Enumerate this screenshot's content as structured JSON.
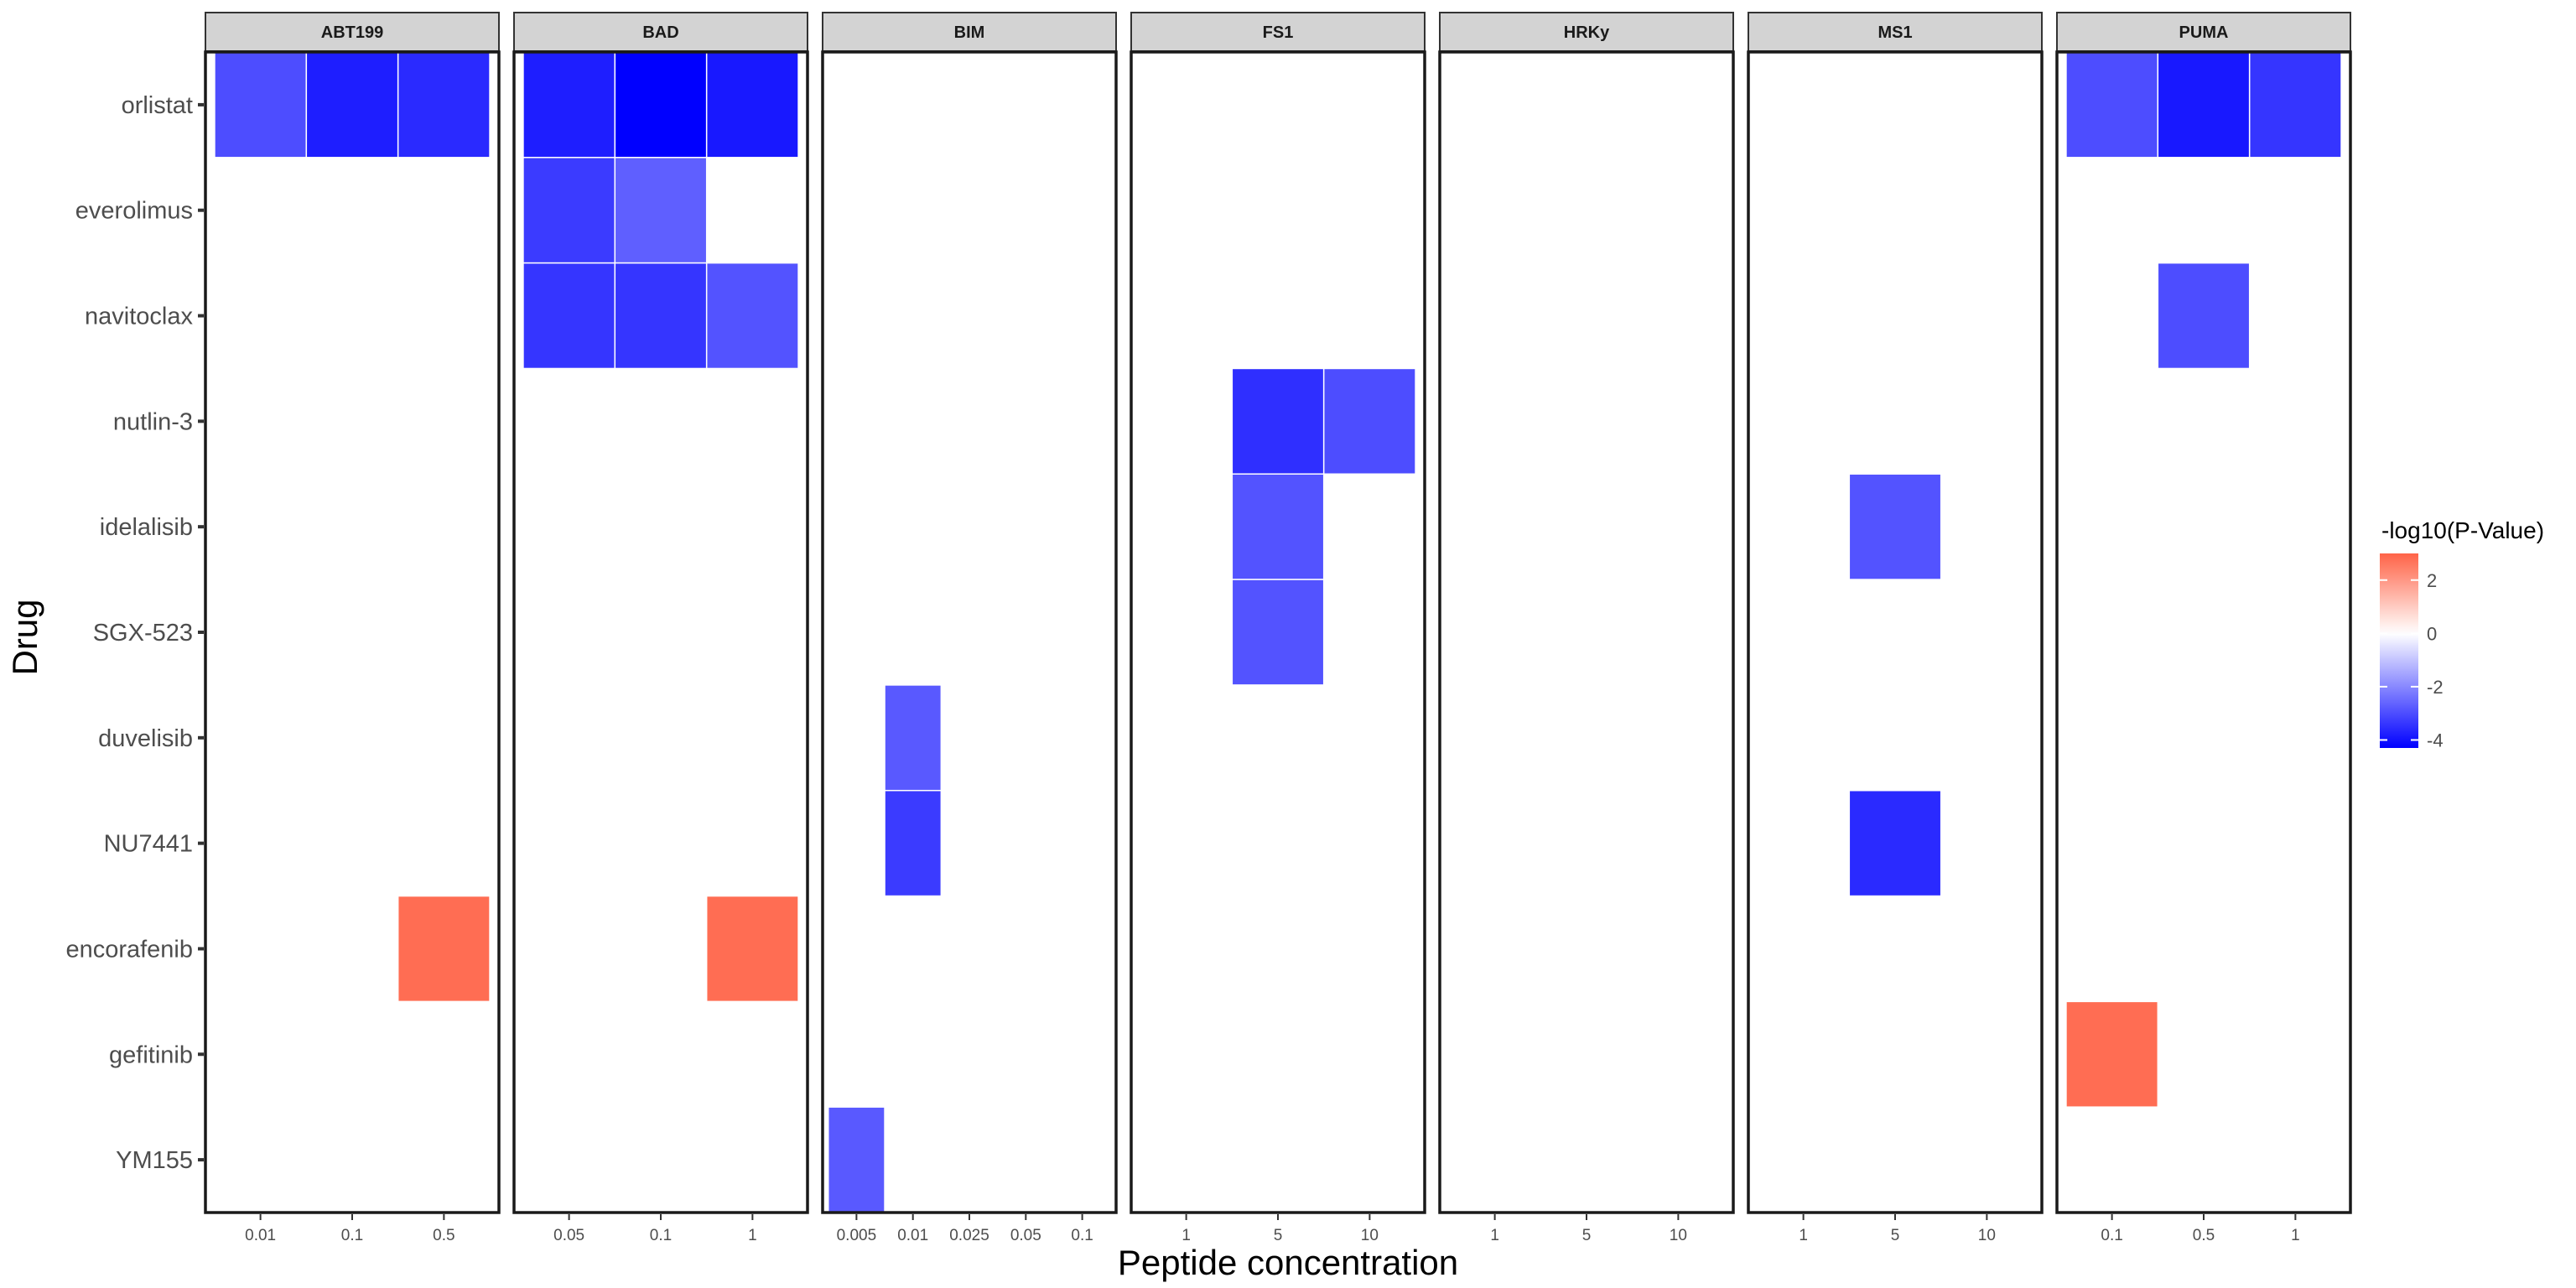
{
  "chart_data": {
    "type": "heatmap",
    "xlabel": "Peptide concentration",
    "ylabel": "Drug",
    "drugs": [
      "orlistat",
      "everolimus",
      "navitoclax",
      "nutlin-3",
      "idelalisib",
      "SGX-523",
      "duvelisib",
      "NU7441",
      "encorafenib",
      "gefitinib",
      "YM155"
    ],
    "legend": {
      "title": "-log10(P-Value)",
      "range": [
        -4.3,
        3.0
      ],
      "ticks": [
        "2",
        "0",
        "-2",
        "-4"
      ],
      "tick_values": [
        2,
        0,
        -2,
        -4
      ],
      "colors": {
        "low": "#0000ff",
        "mid": "#ffffff",
        "high": "#ff6347"
      }
    },
    "facets": [
      {
        "name": "ABT199",
        "concentrations": [
          "0.01",
          "0.1",
          "0.5"
        ],
        "cells": [
          {
            "drug": "orlistat",
            "conc": "0.01",
            "value": -3.0
          },
          {
            "drug": "orlistat",
            "conc": "0.1",
            "value": -3.8
          },
          {
            "drug": "orlistat",
            "conc": "0.5",
            "value": -3.6
          },
          {
            "drug": "encorafenib",
            "conc": "0.5",
            "value": 2.8
          }
        ]
      },
      {
        "name": "BAD",
        "concentrations": [
          "0.05",
          "0.1",
          "1"
        ],
        "cells": [
          {
            "drug": "orlistat",
            "conc": "0.05",
            "value": -3.8
          },
          {
            "drug": "orlistat",
            "conc": "0.1",
            "value": -4.3
          },
          {
            "drug": "orlistat",
            "conc": "1",
            "value": -3.9
          },
          {
            "drug": "everolimus",
            "conc": "0.05",
            "value": -3.3
          },
          {
            "drug": "everolimus",
            "conc": "0.1",
            "value": -2.7
          },
          {
            "drug": "navitoclax",
            "conc": "0.05",
            "value": -3.4
          },
          {
            "drug": "navitoclax",
            "conc": "0.1",
            "value": -3.4
          },
          {
            "drug": "navitoclax",
            "conc": "1",
            "value": -2.9
          },
          {
            "drug": "encorafenib",
            "conc": "1",
            "value": 2.8
          }
        ]
      },
      {
        "name": "BIM",
        "concentrations": [
          "0.005",
          "0.01",
          "0.025",
          "0.05",
          "0.1"
        ],
        "cells": [
          {
            "drug": "duvelisib",
            "conc": "0.01",
            "value": -2.8
          },
          {
            "drug": "NU7441",
            "conc": "0.01",
            "value": -3.3
          },
          {
            "drug": "YM155",
            "conc": "0.005",
            "value": -2.8
          }
        ]
      },
      {
        "name": "FS1",
        "concentrations": [
          "1",
          "5",
          "10"
        ],
        "cells": [
          {
            "drug": "nutlin-3",
            "conc": "5",
            "value": -3.5
          },
          {
            "drug": "nutlin-3",
            "conc": "10",
            "value": -3.0
          },
          {
            "drug": "idelalisib",
            "conc": "5",
            "value": -2.9
          },
          {
            "drug": "SGX-523",
            "conc": "5",
            "value": -2.9
          }
        ]
      },
      {
        "name": "HRKy",
        "concentrations": [
          "1",
          "5",
          "10"
        ],
        "cells": []
      },
      {
        "name": "MS1",
        "concentrations": [
          "1",
          "5",
          "10"
        ],
        "cells": [
          {
            "drug": "idelalisib",
            "conc": "5",
            "value": -2.9
          },
          {
            "drug": "NU7441",
            "conc": "5",
            "value": -3.6
          }
        ]
      },
      {
        "name": "PUMA",
        "concentrations": [
          "0.1",
          "0.5",
          "1"
        ],
        "cells": [
          {
            "drug": "orlistat",
            "conc": "0.1",
            "value": -3.0
          },
          {
            "drug": "orlistat",
            "conc": "0.5",
            "value": -3.9
          },
          {
            "drug": "orlistat",
            "conc": "1",
            "value": -3.4
          },
          {
            "drug": "navitoclax",
            "conc": "0.5",
            "value": -3.0
          },
          {
            "drug": "gefitinib",
            "conc": "0.1",
            "value": 2.8
          }
        ]
      }
    ]
  }
}
